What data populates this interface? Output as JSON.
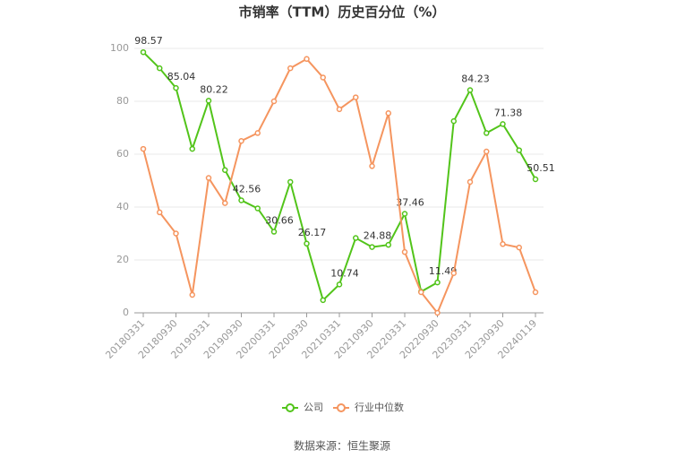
{
  "chart_data": {
    "type": "line",
    "title": "市销率（TTM）历史百分位（%）",
    "x": [
      "20180331",
      null,
      "20180930",
      null,
      "20190331",
      null,
      "20190930",
      null,
      "20200331",
      null,
      "20200930",
      null,
      "20210331",
      null,
      "20210930",
      null,
      "20220331",
      null,
      "20220930",
      null,
      "20230331",
      null,
      "20230930",
      null,
      "20240119"
    ],
    "series": [
      {
        "name": "公司",
        "color": "#52c41a",
        "values": [
          98.57,
          92.5,
          85.04,
          62,
          80.22,
          54,
          42.56,
          39.5,
          30.66,
          49.5,
          26.17,
          4.8,
          10.74,
          28.3,
          24.88,
          25.7,
          37.46,
          8,
          11.49,
          72.5,
          84.23,
          68,
          71.38,
          61.5,
          50.51
        ]
      },
      {
        "name": "行业中位数",
        "color": "#f5955f",
        "values": [
          62,
          38,
          30,
          6.8,
          51,
          41.5,
          65,
          68,
          80,
          92.5,
          96,
          89,
          77,
          81.5,
          55.5,
          75.5,
          23,
          7.8,
          0,
          15,
          49.5,
          61,
          26,
          24.7,
          7.8
        ]
      }
    ],
    "ylim": [
      0,
      100
    ],
    "yticks": [
      0,
      20,
      40,
      60,
      80,
      100
    ],
    "grid": true,
    "source": "数据来源：恒生聚源"
  }
}
